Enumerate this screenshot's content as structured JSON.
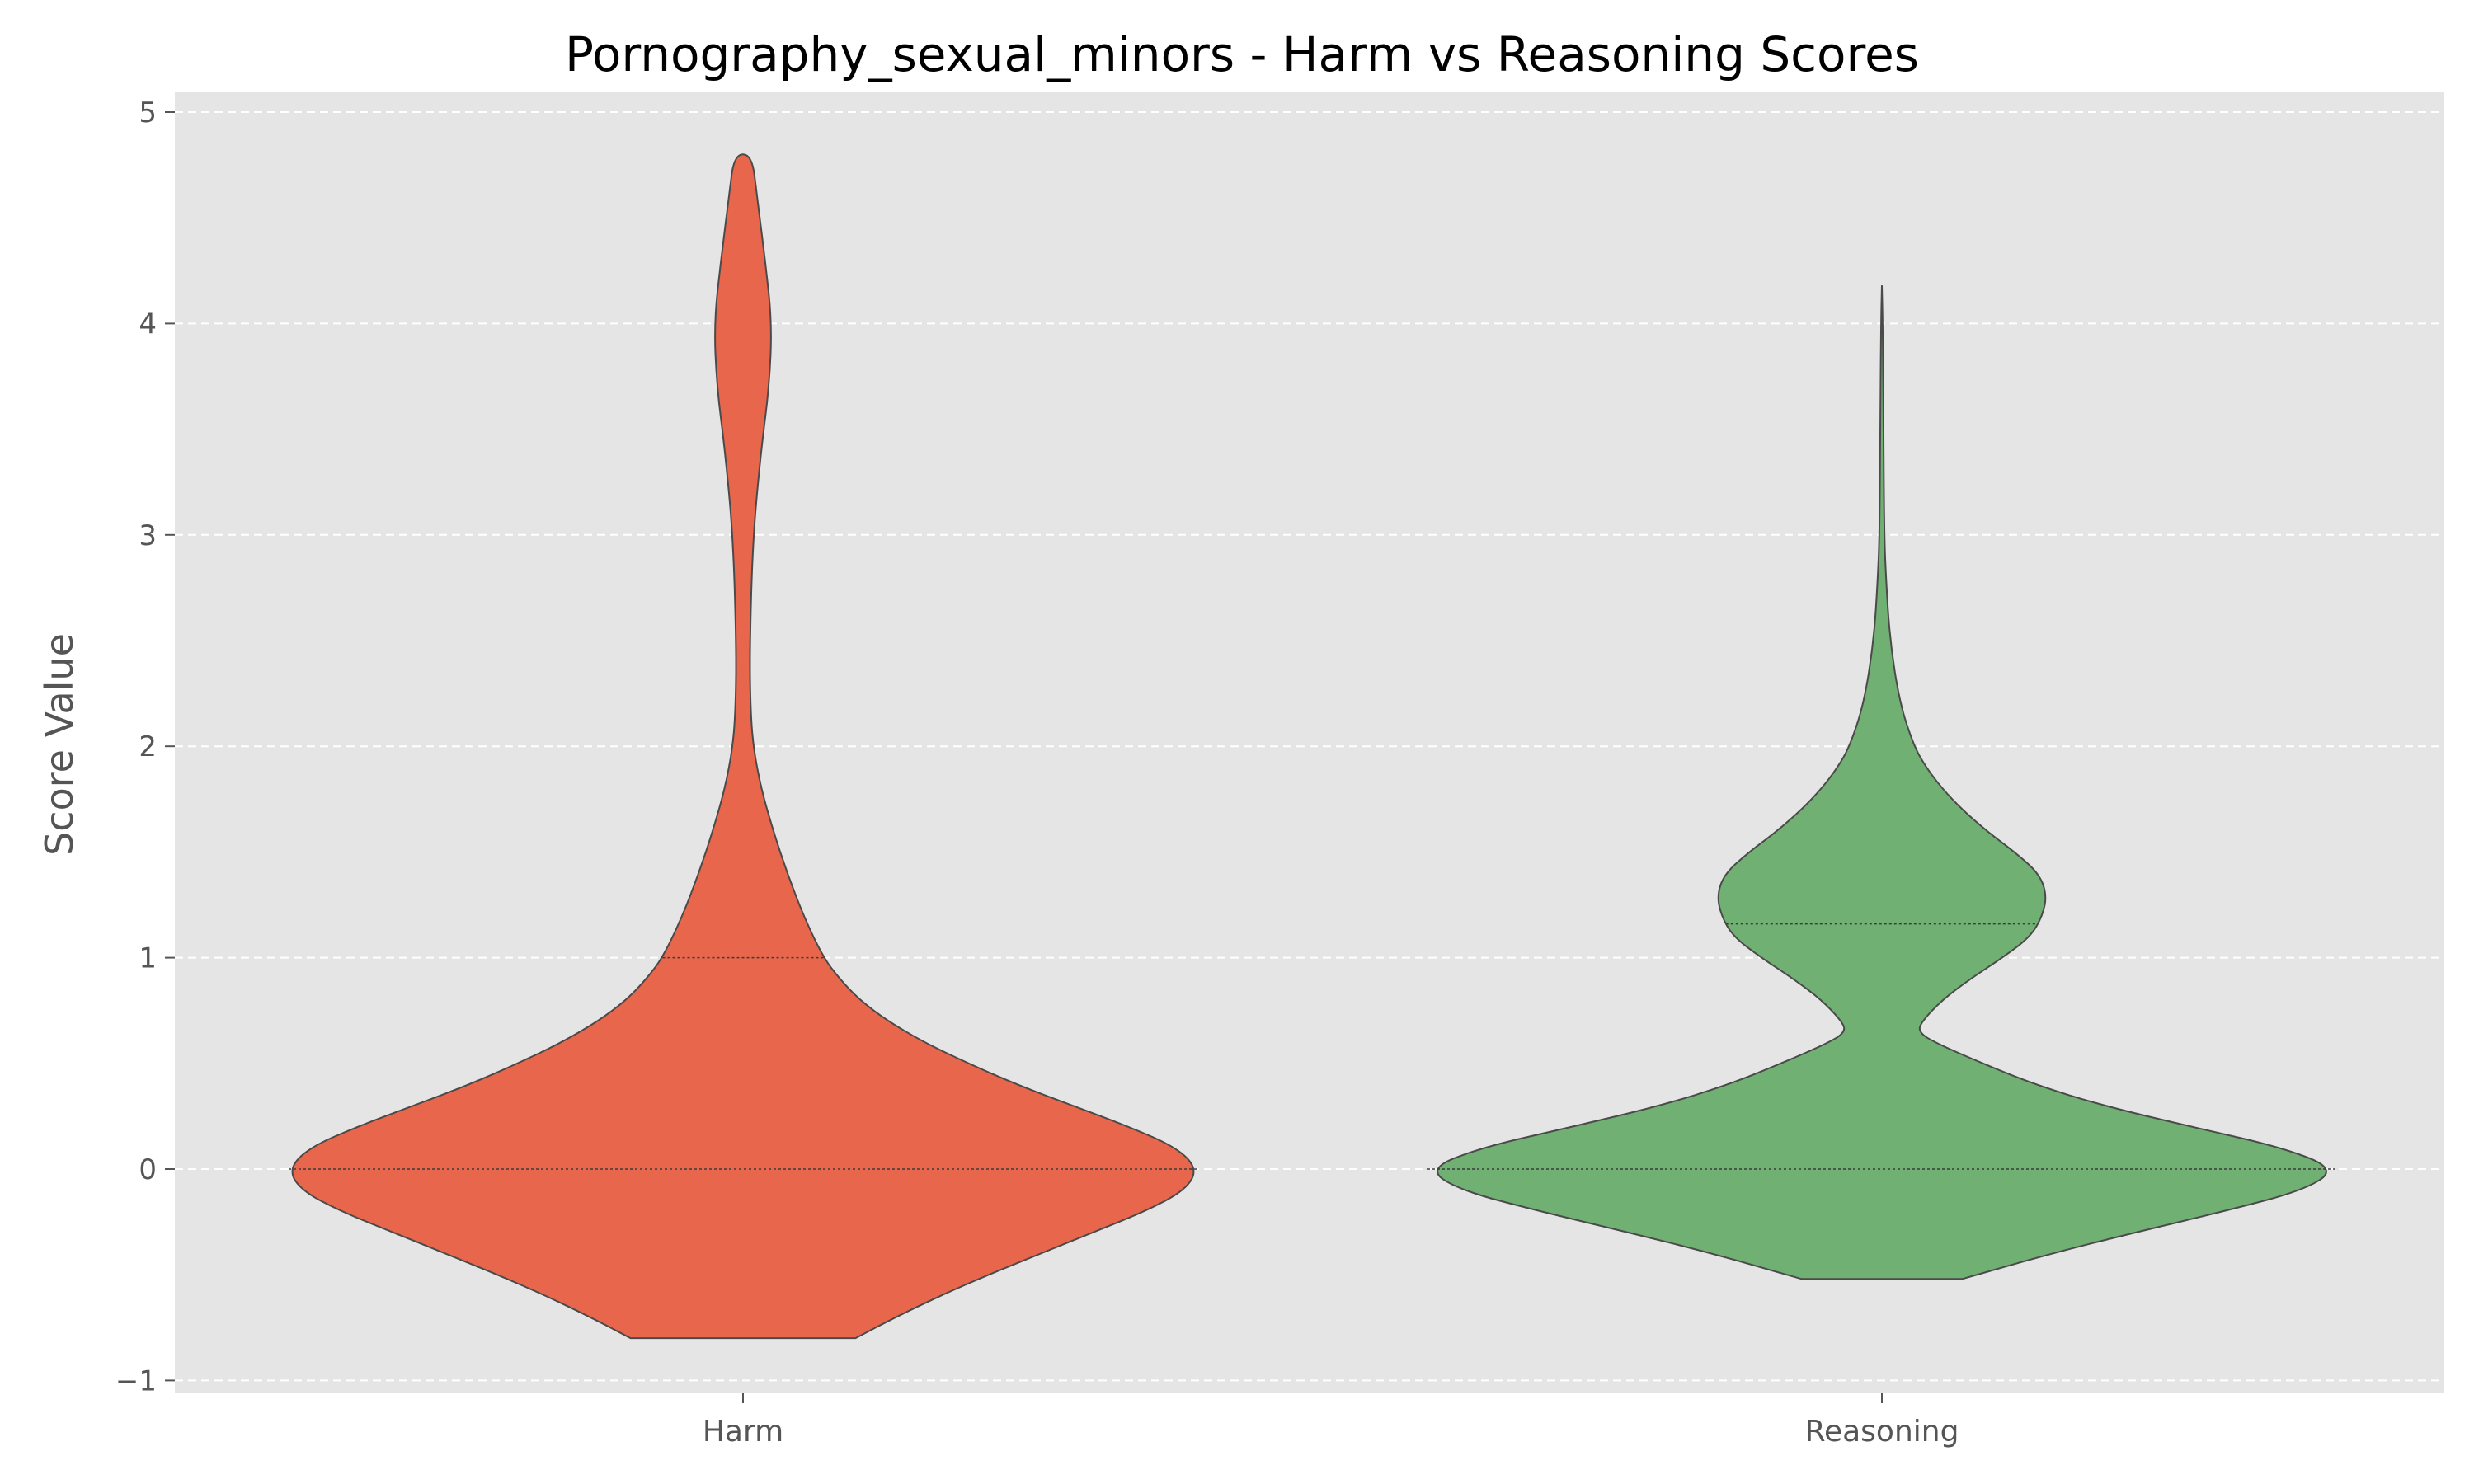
{
  "chart_data": {
    "type": "violin",
    "title": "Pornography_sexual_minors - Harm vs Reasoning Scores",
    "xlabel": "",
    "ylabel": "Score Value",
    "categories": [
      "Harm",
      "Reasoning"
    ],
    "ylim": [
      -1.05,
      5.05
    ],
    "yticks": [
      -1,
      0,
      1,
      2,
      3,
      4,
      5
    ],
    "ytick_labels": [
      "−1",
      "0",
      "1",
      "2",
      "3",
      "4",
      "5"
    ],
    "grid": true,
    "series": [
      {
        "category": "Harm",
        "color": "#E8674C",
        "range": [
          -0.8,
          4.8
        ],
        "quartile_lines": [
          0,
          0,
          1
        ],
        "density_profile": [
          [
            -0.8,
            0.28
          ],
          [
            -0.7,
            0.38
          ],
          [
            -0.6,
            0.49
          ],
          [
            -0.5,
            0.61
          ],
          [
            -0.4,
            0.74
          ],
          [
            -0.3,
            0.87
          ],
          [
            -0.2,
            1.0
          ],
          [
            -0.1,
            1.1
          ],
          [
            0.0,
            1.13
          ],
          [
            0.1,
            1.08
          ],
          [
            0.2,
            0.96
          ],
          [
            0.3,
            0.82
          ],
          [
            0.4,
            0.68
          ],
          [
            0.5,
            0.56
          ],
          [
            0.6,
            0.45
          ],
          [
            0.7,
            0.36
          ],
          [
            0.8,
            0.29
          ],
          [
            0.9,
            0.24
          ],
          [
            1.0,
            0.2
          ],
          [
            1.2,
            0.15
          ],
          [
            1.4,
            0.11
          ],
          [
            1.6,
            0.075
          ],
          [
            1.8,
            0.045
          ],
          [
            2.0,
            0.025
          ],
          [
            2.2,
            0.018
          ],
          [
            2.5,
            0.017
          ],
          [
            3.0,
            0.025
          ],
          [
            3.4,
            0.045
          ],
          [
            3.7,
            0.065
          ],
          [
            4.0,
            0.072
          ],
          [
            4.3,
            0.055
          ],
          [
            4.6,
            0.035
          ],
          [
            4.8,
            0.022
          ]
        ]
      },
      {
        "category": "Reasoning",
        "color": "#70B072",
        "range": [
          -0.52,
          4.18
        ],
        "quartile_lines": [
          0,
          0,
          1.16
        ],
        "density_profile": [
          [
            -0.52,
            0.2
          ],
          [
            -0.4,
            0.42
          ],
          [
            -0.3,
            0.63
          ],
          [
            -0.2,
            0.85
          ],
          [
            -0.1,
            1.05
          ],
          [
            0.0,
            1.13
          ],
          [
            0.1,
            1.0
          ],
          [
            0.2,
            0.77
          ],
          [
            0.3,
            0.55
          ],
          [
            0.4,
            0.38
          ],
          [
            0.5,
            0.25
          ],
          [
            0.6,
            0.13
          ],
          [
            0.65,
            0.09
          ],
          [
            0.7,
            0.1
          ],
          [
            0.8,
            0.15
          ],
          [
            0.9,
            0.22
          ],
          [
            1.0,
            0.3
          ],
          [
            1.1,
            0.37
          ],
          [
            1.2,
            0.4
          ],
          [
            1.3,
            0.41
          ],
          [
            1.4,
            0.39
          ],
          [
            1.5,
            0.33
          ],
          [
            1.6,
            0.26
          ],
          [
            1.7,
            0.2
          ],
          [
            1.8,
            0.15
          ],
          [
            1.9,
            0.11
          ],
          [
            2.0,
            0.08
          ],
          [
            2.2,
            0.045
          ],
          [
            2.5,
            0.02
          ],
          [
            2.8,
            0.01
          ],
          [
            3.0,
            0.006
          ],
          [
            3.5,
            0.004
          ],
          [
            4.0,
            0.002
          ],
          [
            4.18,
            0.0
          ]
        ]
      }
    ]
  }
}
